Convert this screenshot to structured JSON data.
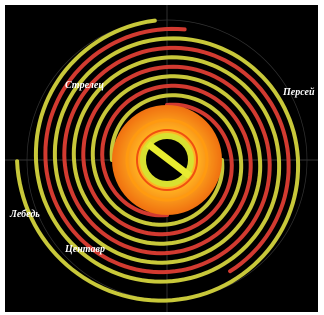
{
  "labels": [
    {
      "text": "Стрелец"
    },
    {
      "text": "Персей"
    },
    {
      "text": "Лебедь"
    },
    {
      "text": "Центавр"
    }
  ]
}
